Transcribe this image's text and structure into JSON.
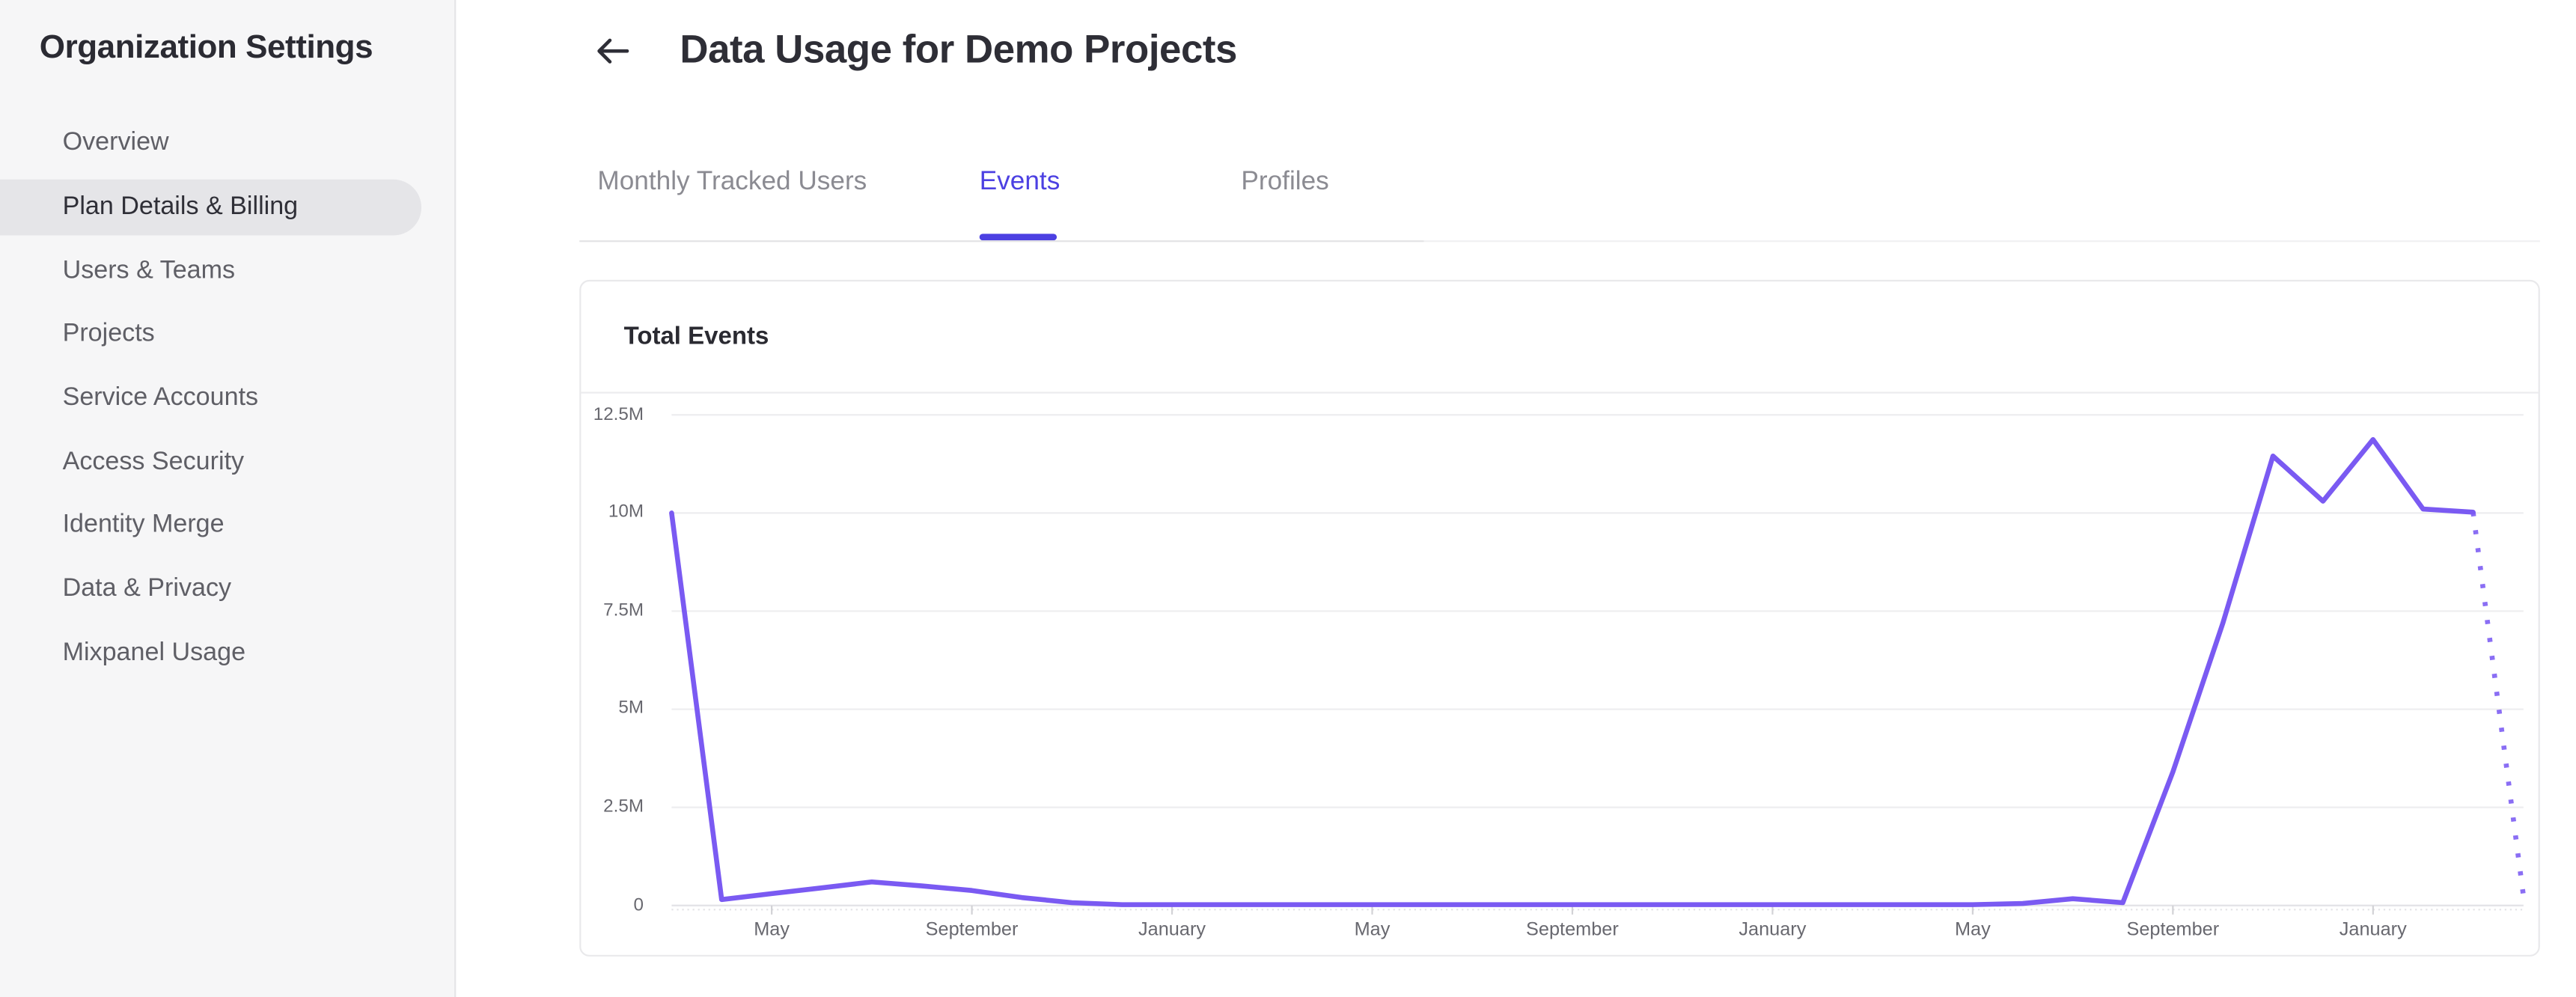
{
  "sidebar": {
    "title": "Organization Settings",
    "items": [
      {
        "label": "Overview",
        "selected": false
      },
      {
        "label": "Plan Details & Billing",
        "selected": true
      },
      {
        "label": "Users & Teams",
        "selected": false
      },
      {
        "label": "Projects",
        "selected": false
      },
      {
        "label": "Service Accounts",
        "selected": false
      },
      {
        "label": "Access Security",
        "selected": false
      },
      {
        "label": "Identity Merge",
        "selected": false
      },
      {
        "label": "Data & Privacy",
        "selected": false
      },
      {
        "label": "Mixpanel Usage",
        "selected": false
      }
    ]
  },
  "header": {
    "title": "Data Usage for Demo Projects",
    "back_icon": "arrow-left"
  },
  "tabs": [
    {
      "label": "Monthly Tracked Users",
      "active": false
    },
    {
      "label": "Events",
      "active": true
    },
    {
      "label": "Profiles",
      "active": false
    }
  ],
  "card": {
    "title": "Total Events"
  },
  "colors": {
    "accent": "#4c40e2",
    "line": "#7a5af2",
    "grid": "#ededef",
    "axis_line": "#e3e3e6",
    "tick": "#d2d2d6",
    "axis_text": "#68686f",
    "sidebar_bg": "#f6f6f7",
    "pill_bg": "#e5e5e8"
  },
  "chart_data": {
    "type": "line",
    "title": "Total Events",
    "ylabel": "",
    "xlabel": "",
    "unit": "millions of events",
    "ylim": [
      0,
      12.5
    ],
    "grid": "horizontal",
    "legend": "none",
    "y_ticks": [
      {
        "label": "12.5M",
        "value": 12.5
      },
      {
        "label": "10M",
        "value": 10
      },
      {
        "label": "7.5M",
        "value": 7.5
      },
      {
        "label": "5M",
        "value": 5
      },
      {
        "label": "2.5M",
        "value": 2.5
      },
      {
        "label": "0",
        "value": 0
      }
    ],
    "x_labels": [
      {
        "label": "May",
        "index": 2
      },
      {
        "label": "September",
        "index": 6
      },
      {
        "label": "January",
        "index": 10
      },
      {
        "label": "May",
        "index": 14
      },
      {
        "label": "September",
        "index": 18
      },
      {
        "label": "January",
        "index": 22
      },
      {
        "label": "May",
        "index": 26
      },
      {
        "label": "September",
        "index": 30
      },
      {
        "label": "January",
        "index": 34
      }
    ],
    "months_per_point": 1,
    "values_millions": [
      10.0,
      0.15,
      0.3,
      0.45,
      0.6,
      0.5,
      0.38,
      0.2,
      0.07,
      0.02,
      0.02,
      0.02,
      0.02,
      0.02,
      0.02,
      0.02,
      0.02,
      0.02,
      0.02,
      0.02,
      0.02,
      0.02,
      0.02,
      0.02,
      0.02,
      0.02,
      0.02,
      0.05,
      0.17,
      0.07,
      3.4,
      7.2,
      11.45,
      10.3,
      11.87,
      10.1,
      10.02
    ],
    "projected_point_millions": 0.3,
    "projected_style": "dotted"
  }
}
